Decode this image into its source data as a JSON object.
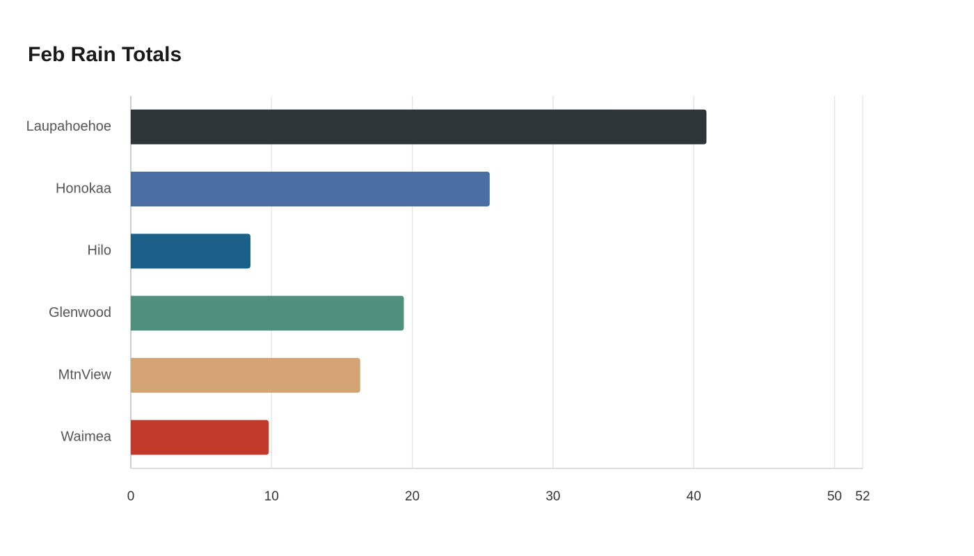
{
  "chart_data": {
    "type": "bar",
    "orientation": "horizontal",
    "title": "Feb Rain Totals",
    "categories": [
      "Laupahoehoe",
      "Honokaa",
      "Hilo",
      "Glenwood",
      "MtnView",
      "Waimea"
    ],
    "values": [
      40.9,
      25.5,
      8.5,
      19.4,
      16.3,
      9.8
    ],
    "colors": [
      "#2e3538",
      "#4a6fa5",
      "#1a6088",
      "#4f8f7b",
      "#d4a574",
      "#c0392b"
    ],
    "xlim": [
      0,
      52
    ],
    "xticks": [
      0,
      10,
      20,
      30,
      40,
      50,
      52
    ],
    "grid": true
  }
}
